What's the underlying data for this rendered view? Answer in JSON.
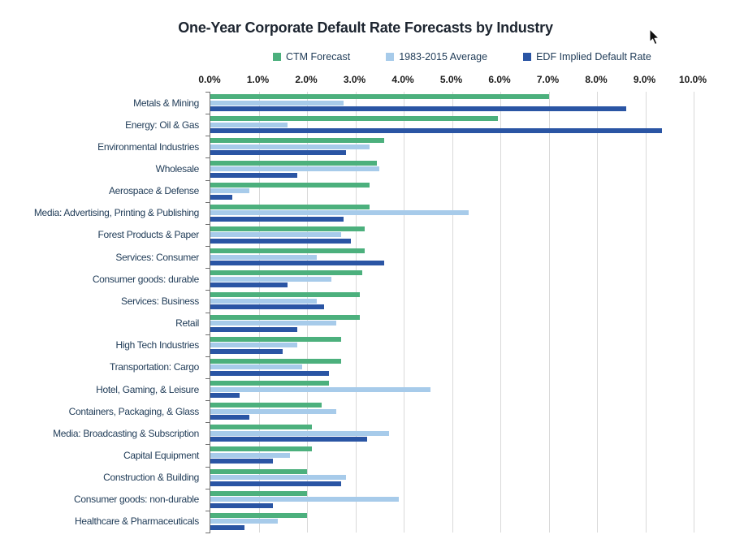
{
  "title": "One-Year Corporate Default Rate Forecasts by Industry",
  "chart_data": {
    "type": "bar",
    "orientation": "horizontal",
    "title": "One-Year Corporate Default Rate Forecasts by Industry",
    "grid": true,
    "legend_position": "top",
    "x_axis": {
      "min": 0,
      "max": 10,
      "tick_step": 1,
      "tick_labels": [
        "0.0%",
        "1.0%",
        "2.0%",
        "3.0%",
        "4.0%",
        "5.0%",
        "6.0%",
        "7.0%",
        "8.0%",
        "9.0%",
        "10.0%"
      ],
      "unit": "percent"
    },
    "categories": [
      "Metals & Mining",
      "Energy: Oil & Gas",
      "Environmental Industries",
      "Wholesale",
      "Aerospace & Defense",
      "Media: Advertising, Printing & Publishing",
      "Forest Products & Paper",
      "Services: Consumer",
      "Consumer goods: durable",
      "Services: Business",
      "Retail",
      "High Tech Industries",
      "Transportation: Cargo",
      "Hotel, Gaming, & Leisure",
      "Containers, Packaging, & Glass",
      "Media: Broadcasting & Subscription",
      "Capital Equipment",
      "Construction & Building",
      "Consumer goods: non-durable",
      "Healthcare & Pharmaceuticals"
    ],
    "series": [
      {
        "name": "CTM Forecast",
        "color": "#4cb07d",
        "values": [
          7.0,
          5.95,
          3.6,
          3.45,
          3.3,
          3.3,
          3.2,
          3.2,
          3.15,
          3.1,
          3.1,
          2.7,
          2.7,
          2.45,
          2.3,
          2.1,
          2.1,
          2.0,
          2.0,
          2.0
        ]
      },
      {
        "name": "1983-2015 Average",
        "color": "#a7cbea",
        "values": [
          2.75,
          1.6,
          3.3,
          3.5,
          0.8,
          5.35,
          2.7,
          2.2,
          2.5,
          2.2,
          2.6,
          1.8,
          1.9,
          4.55,
          2.6,
          3.7,
          1.65,
          2.8,
          3.9,
          1.4
        ]
      },
      {
        "name": "EDF Implied Default Rate",
        "color": "#2a55a4",
        "values": [
          8.6,
          9.35,
          2.8,
          1.8,
          0.45,
          2.75,
          2.9,
          3.6,
          1.6,
          2.35,
          1.8,
          1.5,
          2.45,
          0.6,
          0.8,
          3.25,
          1.3,
          2.7,
          1.3,
          0.7
        ]
      }
    ]
  },
  "colors": {
    "gridline": "#d9d9d9",
    "axis_line": "#6e6e6e",
    "title_text": "#1d2530",
    "category_text": "#1f3b57",
    "tick_text": "#1b1b1b",
    "cursor": "#111111"
  }
}
